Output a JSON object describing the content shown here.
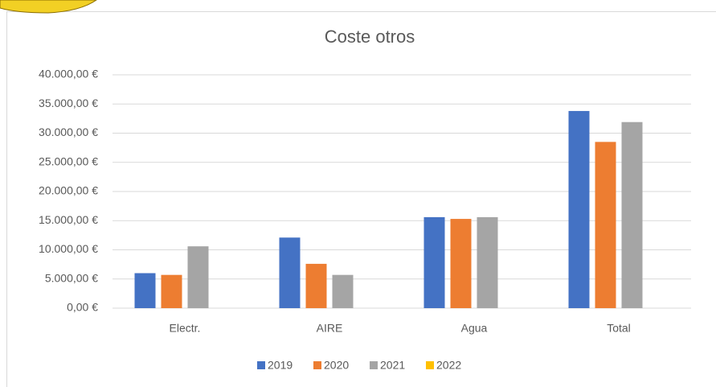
{
  "chart_data": {
    "type": "bar",
    "title": "Coste otros",
    "categories": [
      "Electr.",
      "AIRE",
      "Agua",
      "Total"
    ],
    "series": [
      {
        "name": "2019",
        "color": "#4472c4",
        "values": [
          6000,
          12100,
          15600,
          33800
        ]
      },
      {
        "name": "2020",
        "color": "#ed7d31",
        "values": [
          5700,
          7600,
          15300,
          28500
        ]
      },
      {
        "name": "2021",
        "color": "#a5a5a5",
        "values": [
          10600,
          5700,
          15600,
          31900
        ]
      },
      {
        "name": "2022",
        "color": "#ffc000",
        "values": [
          0,
          0,
          0,
          0
        ]
      }
    ],
    "ylim": [
      0,
      40000
    ],
    "yticks": [
      {
        "value": 0,
        "label": "0,00 €"
      },
      {
        "value": 5000,
        "label": "5.000,00 €"
      },
      {
        "value": 10000,
        "label": "10.000,00 €"
      },
      {
        "value": 15000,
        "label": "15.000,00 €"
      },
      {
        "value": 20000,
        "label": "20.000,00 €"
      },
      {
        "value": 25000,
        "label": "25.000,00 €"
      },
      {
        "value": 30000,
        "label": "30.000,00 €"
      },
      {
        "value": 35000,
        "label": "35.000,00 €"
      },
      {
        "value": 40000,
        "label": "40.000,00 €"
      }
    ],
    "grid": true,
    "legend": "bottom"
  }
}
